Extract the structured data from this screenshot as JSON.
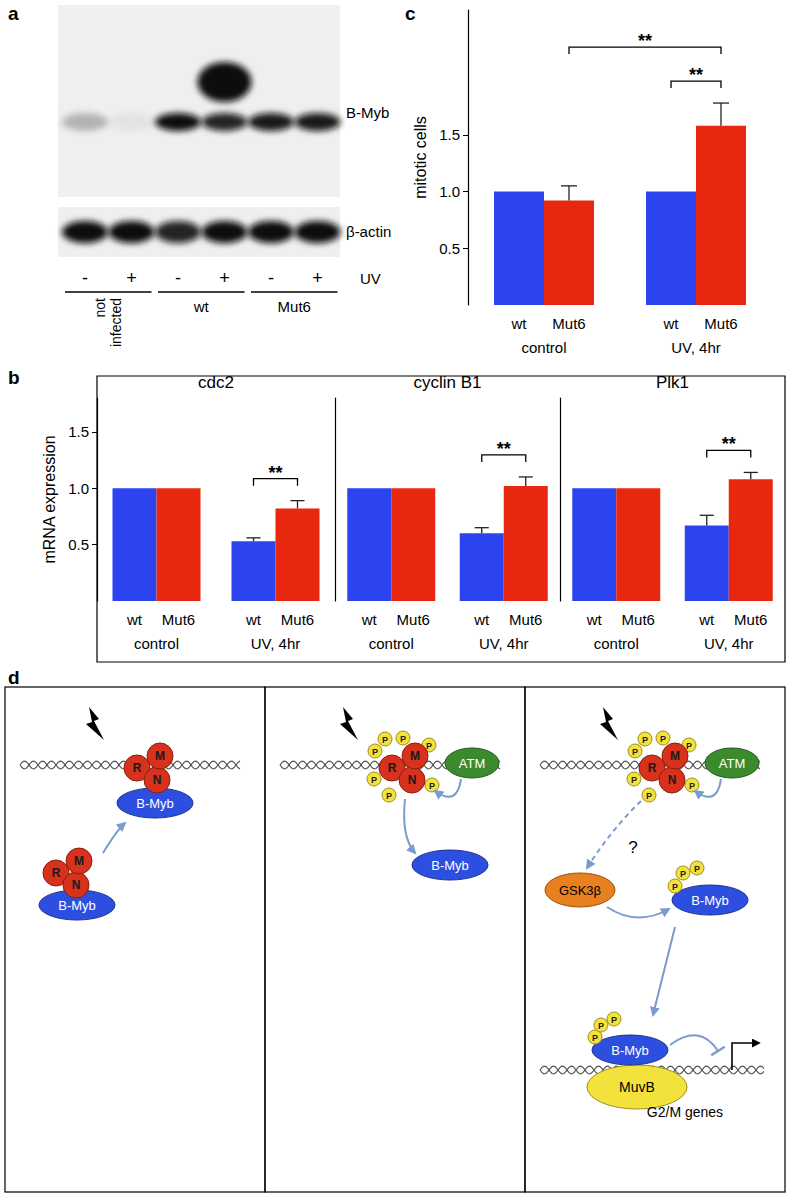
{
  "figure_labels": [
    "a",
    "b",
    "c",
    "d"
  ],
  "blot": {
    "rows": [
      "B-Myb",
      "β-actin"
    ],
    "uv_label": "UV",
    "uv": [
      "-",
      "+",
      "-",
      "+",
      "-",
      "+"
    ],
    "groups": [
      {
        "label": "not infected",
        "lanes": [
          0,
          1
        ]
      },
      {
        "label": "wt",
        "lanes": [
          2,
          3
        ]
      },
      {
        "label": "Mut6",
        "lanes": [
          4,
          5
        ]
      }
    ],
    "bmyb_band": [
      0.25,
      0.05,
      1,
      0.9,
      0.95,
      0.95
    ],
    "shifted_band": [
      0,
      0,
      0,
      1,
      0,
      0
    ],
    "actin_band": [
      1,
      1,
      0.9,
      1,
      1,
      1
    ]
  },
  "chart_data": [
    {
      "type": "bar",
      "title": "cdc2",
      "ylabel": "mRNA expression",
      "categories": [
        "control",
        "UV, 4hr"
      ],
      "series": [
        {
          "name": "wt",
          "color": "#2b44f0",
          "values": [
            1,
            0.53
          ],
          "errors": [
            0,
            0.03
          ]
        },
        {
          "name": "Mut6",
          "color": "#e8280e",
          "values": [
            1,
            0.82
          ],
          "errors": [
            0,
            0.07
          ]
        }
      ],
      "ylim": [
        0,
        1.8
      ],
      "yticks": [
        0.5,
        {
          "value": 1,
          "label": "1.0"
        },
        1.5
      ],
      "grid": false,
      "significance": [
        {
          "between": [
            [
              1,
              0
            ],
            [
              1,
              1
            ]
          ],
          "label": "**"
        }
      ]
    },
    {
      "type": "bar",
      "title": "cyclin B1",
      "categories": [
        "control",
        "UV, 4hr"
      ],
      "series": [
        {
          "name": "wt",
          "color": "#2b44f0",
          "values": [
            1,
            0.6
          ],
          "errors": [
            0,
            0.05
          ]
        },
        {
          "name": "Mut6",
          "color": "#e8280e",
          "values": [
            1,
            1.02
          ],
          "errors": [
            0,
            0.08
          ]
        }
      ],
      "ylim": [
        0,
        1.8
      ],
      "tick_labels": "x",
      "grid": false,
      "significance": [
        {
          "between": [
            [
              1,
              0
            ],
            [
              1,
              1
            ]
          ],
          "label": "**"
        }
      ]
    },
    {
      "type": "bar",
      "title": "Plk1",
      "categories": [
        "control",
        "UV, 4hr"
      ],
      "series": [
        {
          "name": "wt",
          "color": "#2b44f0",
          "values": [
            1,
            0.67
          ],
          "errors": [
            0,
            0.09
          ]
        },
        {
          "name": "Mut6",
          "color": "#e8280e",
          "values": [
            1,
            1.08
          ],
          "errors": [
            0,
            0.06
          ]
        }
      ],
      "ylim": [
        0,
        1.8
      ],
      "tick_labels": "x",
      "grid": false,
      "significance": [
        {
          "between": [
            [
              1,
              0
            ],
            [
              1,
              1
            ]
          ],
          "label": "**"
        }
      ]
    },
    {
      "type": "bar",
      "ylabel": "mitotic cells",
      "categories": [
        "control",
        "UV, 4hr"
      ],
      "series": [
        {
          "name": "wt",
          "color": "#2b44f0",
          "values": [
            1,
            1
          ],
          "errors": [
            0,
            0
          ]
        },
        {
          "name": "Mut6",
          "color": "#e8280e",
          "values": [
            0.92,
            1.58
          ],
          "errors": [
            0.13,
            0.2
          ]
        }
      ],
      "ylim": [
        0,
        2.6
      ],
      "yticks": [
        0.5,
        {
          "value": 1,
          "label": "1.0"
        },
        1.5
      ],
      "grid": false,
      "significance": [
        {
          "between": [
            [
              1,
              0
            ],
            [
              1,
              1
            ]
          ],
          "label": "**"
        },
        {
          "between": [
            [
              0,
              1
            ],
            [
              1,
              1
            ]
          ],
          "label": "**"
        }
      ]
    }
  ],
  "diagram": {
    "subunits": [
      "R",
      "M",
      "N"
    ],
    "phospho": "P",
    "factor": "B-Myb",
    "kinase": "ATM",
    "unknown": "?",
    "gsk": "GSK3β",
    "muvb": "MuvB",
    "target": "G2/M genes"
  }
}
